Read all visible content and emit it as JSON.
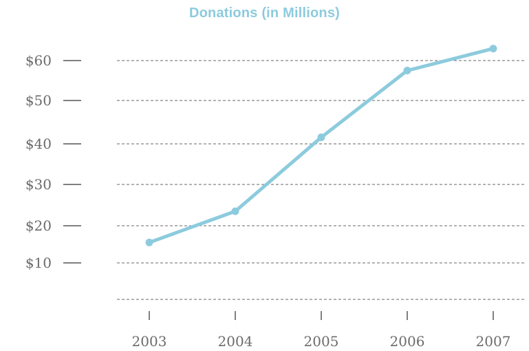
{
  "colors": {
    "accent": "#8ccbdd",
    "gridline": "#666666",
    "tick": "#555555",
    "tick_text": "#6b6b6b"
  },
  "chart_data": {
    "type": "line",
    "title": "Donations (in Millions)",
    "xlabel": "",
    "ylabel": "",
    "categories": [
      "2003",
      "2004",
      "2005",
      "2006",
      "2007"
    ],
    "series": [
      {
        "values": [
          15.5,
          23.5,
          41.5,
          57.5,
          63
        ]
      }
    ],
    "y_ticks": [
      {
        "value": 10,
        "label": "$10"
      },
      {
        "value": 20,
        "label": "$20"
      },
      {
        "value": 30,
        "label": "$30"
      },
      {
        "value": 40,
        "label": "$40"
      },
      {
        "value": 50,
        "label": "$50"
      },
      {
        "value": 60,
        "label": "$60"
      }
    ],
    "grid": true,
    "legend": "none"
  }
}
